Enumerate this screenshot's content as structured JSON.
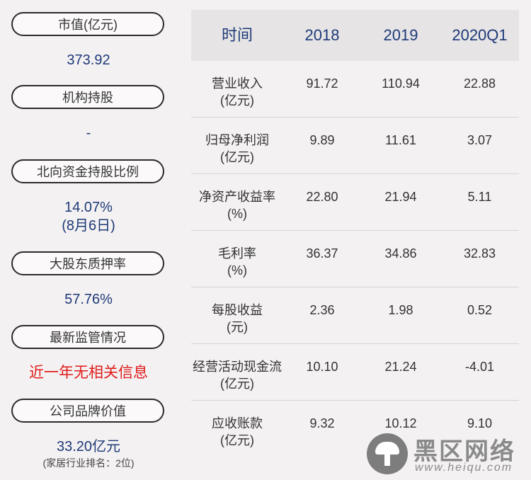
{
  "left": [
    {
      "label": "市值(亿元)",
      "value": "373.92"
    },
    {
      "label": "机构持股",
      "value": "-"
    },
    {
      "label": "北向资金持股比例",
      "value": "14.07%",
      "value2": "(8月6日)"
    },
    {
      "label": "大股东质押率",
      "value": "57.76%"
    },
    {
      "label": "最新监管情况",
      "value": "近一年无相关信息"
    },
    {
      "label": "公司品牌价值",
      "value": "33.20亿元",
      "note": "(家居行业排名：2位)"
    }
  ],
  "table": {
    "headers": [
      "时间",
      "2018",
      "2019",
      "2020Q1"
    ],
    "rows": [
      {
        "name": "营业收入",
        "unit": "(亿元)",
        "values": [
          "91.72",
          "110.94",
          "22.88"
        ]
      },
      {
        "name": "归母净利润",
        "unit": "(亿元)",
        "values": [
          "9.89",
          "11.61",
          "3.07"
        ]
      },
      {
        "name": "净资产收益率",
        "unit": "(%)",
        "values": [
          "22.80",
          "21.94",
          "5.11"
        ]
      },
      {
        "name": "毛利率",
        "unit": "(%)",
        "values": [
          "36.37",
          "34.86",
          "32.83"
        ]
      },
      {
        "name": "每股收益",
        "unit": "(元)",
        "values": [
          "2.36",
          "1.98",
          "0.52"
        ]
      },
      {
        "name": "经营活动现金流",
        "unit": "(亿元)",
        "values": [
          "10.10",
          "21.24",
          "-4.01"
        ]
      },
      {
        "name": "应收账款",
        "unit": "(亿元)",
        "values": [
          "9.32",
          "10.12",
          "9.10"
        ]
      }
    ]
  },
  "watermark": {
    "brand": "黑区网络",
    "url": "www.heiqu.com"
  }
}
